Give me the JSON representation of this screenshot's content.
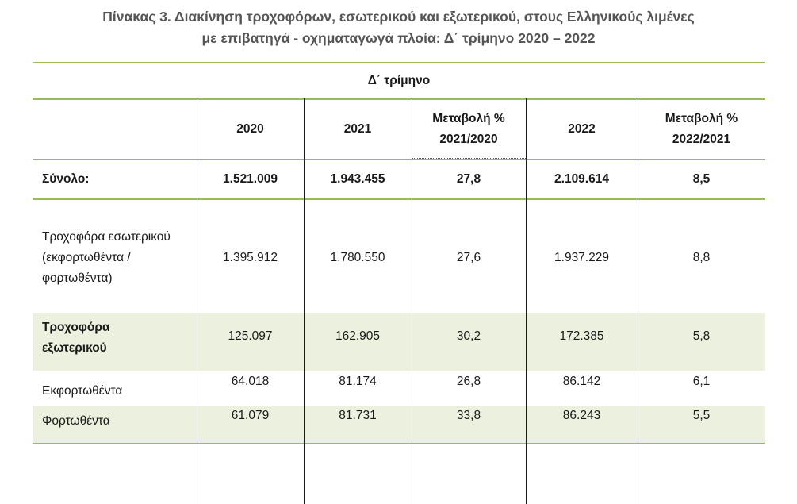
{
  "title": {
    "line1": "Πίνακας 3. Διακίνηση τροχοφόρων, εσωτερικού και εξωτερικού, στους Ελληνικούς λιμένες",
    "line2": "με επιβατηγά - οχηματαγωγά πλοία: Δ΄ τρίμηνο 2020 – 2022"
  },
  "table": {
    "period_header": "Δ΄ τρίμηνο",
    "columns": [
      "2020",
      "2021",
      "Μεταβολή % 2021/2020",
      "2022",
      "Μεταβολή % 2022/2021"
    ],
    "rows": [
      {
        "label": "Σύνολο:",
        "values": [
          "1.521.009",
          "1.943.455",
          "27,8",
          "2.109.614",
          "8,5"
        ]
      },
      {
        "label": "Τροχοφόρα εσωτερικού (εκφορτωθέντα / φορτωθέντα)",
        "values": [
          "1.395.912",
          "1.780.550",
          "27,6",
          "1.937.229",
          "8,8"
        ]
      },
      {
        "label": "Τροχοφόρα εξωτερικού",
        "values": [
          "125.097",
          "162.905",
          "30,2",
          "172.385",
          "5,8"
        ]
      },
      {
        "label": "Εκφορτωθέντα",
        "values": [
          "64.018",
          "81.174",
          "26,8",
          "86.142",
          "6,1"
        ]
      },
      {
        "label": "Φορτωθέντα",
        "values": [
          "61.079",
          "81.731",
          "33,8",
          "86.243",
          "5,5"
        ]
      }
    ]
  },
  "colors": {
    "accent_line": "#9bbb59",
    "row_shade": "#ebf1de",
    "title_text": "#555555"
  }
}
